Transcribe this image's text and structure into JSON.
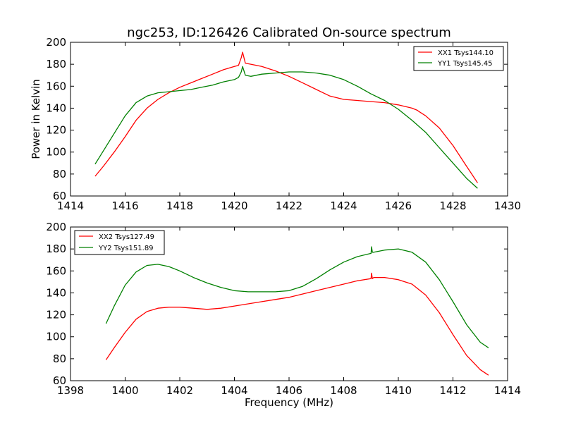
{
  "chart_data": [
    {
      "type": "line",
      "title": "ngc253, ID:126426 Calibrated On-source spectrum",
      "xlabel": "",
      "ylabel": "Power in Kelvin",
      "xlim": [
        1414,
        1430
      ],
      "ylim": [
        60,
        200
      ],
      "xticks": [
        1414,
        1416,
        1418,
        1420,
        1422,
        1424,
        1426,
        1428,
        1430
      ],
      "yticks": [
        60,
        80,
        100,
        120,
        140,
        160,
        180,
        200
      ],
      "legend_position": "top-right",
      "series": [
        {
          "name": "XX1 Tsys144.10",
          "color": "#ff0000",
          "x": [
            1414.9,
            1415.2,
            1415.6,
            1416.0,
            1416.4,
            1416.8,
            1417.2,
            1417.6,
            1418.0,
            1418.4,
            1418.8,
            1419.2,
            1419.6,
            1420.0,
            1420.15,
            1420.25,
            1420.3,
            1420.4,
            1420.6,
            1421.0,
            1421.5,
            1422.0,
            1422.5,
            1423.0,
            1423.5,
            1424.0,
            1424.5,
            1425.0,
            1425.5,
            1426.0,
            1426.5,
            1426.7,
            1426.75,
            1427.0,
            1427.5,
            1428.0,
            1428.5,
            1428.9
          ],
          "y": [
            78,
            87,
            100,
            114,
            129,
            140,
            148,
            154,
            159,
            163,
            167,
            171,
            175,
            178,
            179,
            186,
            191,
            181,
            180,
            178,
            174,
            169,
            163,
            157,
            151,
            148,
            147,
            146,
            145,
            143,
            140,
            138,
            137,
            133,
            122,
            106,
            87,
            72
          ]
        },
        {
          "name": "YY1 Tsys145.45",
          "color": "#008000",
          "x": [
            1414.9,
            1415.2,
            1415.6,
            1416.0,
            1416.4,
            1416.8,
            1417.2,
            1417.6,
            1418.0,
            1418.4,
            1418.8,
            1419.2,
            1419.6,
            1420.0,
            1420.15,
            1420.25,
            1420.3,
            1420.4,
            1420.6,
            1421.0,
            1421.5,
            1422.0,
            1422.5,
            1423.0,
            1423.5,
            1424.0,
            1424.5,
            1425.0,
            1425.5,
            1426.0,
            1426.5,
            1427.0,
            1427.5,
            1428.0,
            1428.5,
            1428.9
          ],
          "y": [
            89,
            101,
            117,
            133,
            145,
            151,
            154,
            155,
            156,
            157,
            159,
            161,
            164,
            166,
            168,
            173,
            178,
            170,
            169,
            171,
            172,
            173,
            173,
            172,
            170,
            166,
            160,
            153,
            147,
            139,
            129,
            118,
            104,
            90,
            76,
            67
          ]
        }
      ]
    },
    {
      "type": "line",
      "title": "",
      "xlabel": "Frequency (MHz)",
      "ylabel": "",
      "xlim": [
        1398,
        1414
      ],
      "ylim": [
        60,
        200
      ],
      "xticks": [
        1398,
        1400,
        1402,
        1404,
        1406,
        1408,
        1410,
        1412,
        1414
      ],
      "yticks": [
        60,
        80,
        100,
        120,
        140,
        160,
        180,
        200
      ],
      "legend_position": "top-left",
      "series": [
        {
          "name": "XX2 Tsys127.49",
          "color": "#ff0000",
          "x": [
            1399.3,
            1399.6,
            1400.0,
            1400.4,
            1400.8,
            1401.2,
            1401.6,
            1402.0,
            1402.5,
            1403.0,
            1403.5,
            1404.0,
            1404.5,
            1405.0,
            1405.5,
            1406.0,
            1406.5,
            1407.0,
            1407.5,
            1408.0,
            1408.5,
            1409.0,
            1409.02,
            1409.05,
            1409.1,
            1409.5,
            1410.0,
            1410.5,
            1411.0,
            1411.5,
            1412.0,
            1412.5,
            1413.0,
            1413.3
          ],
          "y": [
            79,
            90,
            104,
            116,
            123,
            126,
            127,
            127,
            126,
            125,
            126,
            128,
            130,
            132,
            134,
            136,
            139,
            142,
            145,
            148,
            151,
            153,
            158,
            153,
            154,
            154,
            152,
            148,
            138,
            122,
            102,
            83,
            70,
            65
          ]
        },
        {
          "name": "YY2 Tsys151.89",
          "color": "#008000",
          "x": [
            1399.3,
            1399.6,
            1400.0,
            1400.4,
            1400.8,
            1401.2,
            1401.6,
            1402.0,
            1402.5,
            1403.0,
            1403.5,
            1404.0,
            1404.5,
            1405.0,
            1405.5,
            1406.0,
            1406.5,
            1407.0,
            1407.5,
            1408.0,
            1408.5,
            1409.0,
            1409.02,
            1409.05,
            1409.1,
            1409.5,
            1410.0,
            1410.5,
            1411.0,
            1411.5,
            1412.0,
            1412.5,
            1413.0,
            1413.3
          ],
          "y": [
            112,
            128,
            147,
            159,
            165,
            166,
            164,
            160,
            154,
            149,
            145,
            142,
            141,
            141,
            141,
            142,
            146,
            153,
            161,
            168,
            173,
            176,
            182,
            177,
            177,
            179,
            180,
            177,
            168,
            152,
            132,
            111,
            95,
            90
          ]
        }
      ]
    }
  ]
}
